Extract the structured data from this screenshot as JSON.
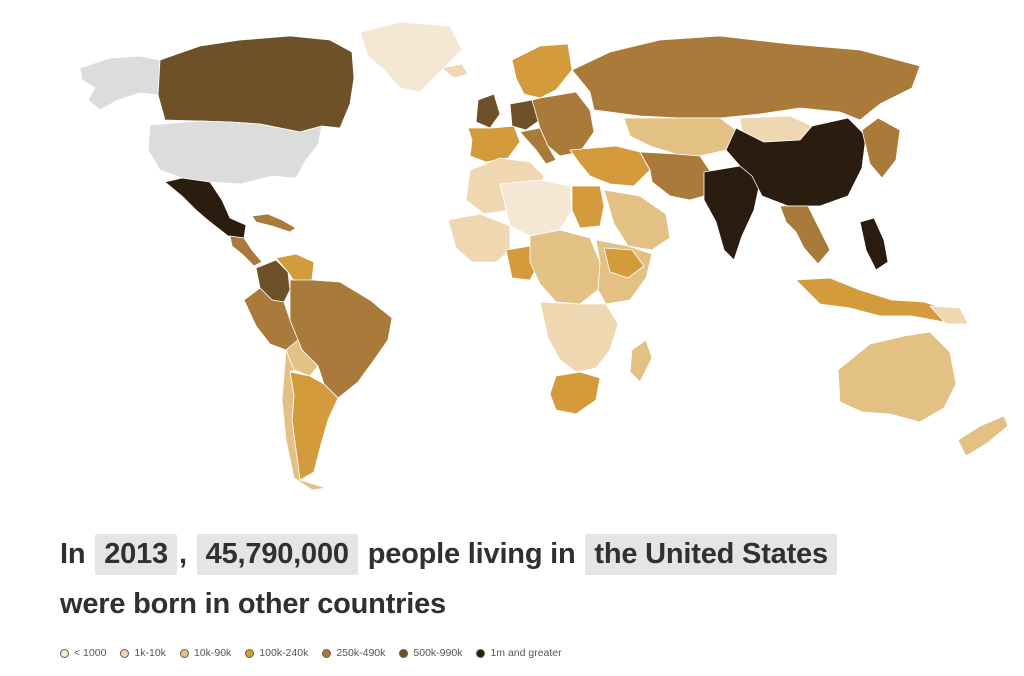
{
  "headline": {
    "in_text": "In",
    "year": "2013",
    "comma": ",",
    "count": "45,790,000",
    "mid_text": "people living in",
    "country": "the United States",
    "line2": "were born in other countries"
  },
  "legend": [
    {
      "label": "< 1000",
      "color": "#f4e7d4"
    },
    {
      "label": "1k-10k",
      "color": "#efd7b1"
    },
    {
      "label": "10k-90k",
      "color": "#e3c184"
    },
    {
      "label": "100k-240k",
      "color": "#d49b3d"
    },
    {
      "label": "250k-490k",
      "color": "#a97a3a"
    },
    {
      "label": "500k-990k",
      "color": "#6e5129"
    },
    {
      "label": "1m and greater",
      "color": "#2a1d0f"
    }
  ],
  "selected_country_color": "#dcdcdc",
  "regions": [
    {
      "name": "Alaska",
      "bin": 7
    },
    {
      "name": "Greenland",
      "bin": 0
    },
    {
      "name": "Canada",
      "bin": 5
    },
    {
      "name": "United States",
      "bin": 7
    },
    {
      "name": "Mexico",
      "bin": 6
    },
    {
      "name": "Central America",
      "bin": 4
    },
    {
      "name": "Caribbean",
      "bin": 4
    },
    {
      "name": "Colombia",
      "bin": 5
    },
    {
      "name": "Venezuela",
      "bin": 3
    },
    {
      "name": "Peru",
      "bin": 4
    },
    {
      "name": "Brazil",
      "bin": 4
    },
    {
      "name": "Bolivia",
      "bin": 2
    },
    {
      "name": "Argentina",
      "bin": 3
    },
    {
      "name": "Chile",
      "bin": 2
    },
    {
      "name": "Iceland",
      "bin": 1
    },
    {
      "name": "Scandinavia",
      "bin": 3
    },
    {
      "name": "United Kingdom",
      "bin": 5
    },
    {
      "name": "France and Iberia",
      "bin": 3
    },
    {
      "name": "Germany",
      "bin": 5
    },
    {
      "name": "Italy",
      "bin": 4
    },
    {
      "name": "Eastern Europe",
      "bin": 4
    },
    {
      "name": "Russia",
      "bin": 4
    },
    {
      "name": "Central Asia",
      "bin": 2
    },
    {
      "name": "Mongolia",
      "bin": 1
    },
    {
      "name": "Turkey and Middle East",
      "bin": 3
    },
    {
      "name": "Iran and Pakistan",
      "bin": 4
    },
    {
      "name": "India",
      "bin": 6
    },
    {
      "name": "China",
      "bin": 6
    },
    {
      "name": "Korea and Japan",
      "bin": 4
    },
    {
      "name": "Southeast Asia",
      "bin": 4
    },
    {
      "name": "Philippines",
      "bin": 6
    },
    {
      "name": "Indonesia",
      "bin": 3
    },
    {
      "name": "North Africa",
      "bin": 1
    },
    {
      "name": "Sahara",
      "bin": 0
    },
    {
      "name": "Egypt",
      "bin": 3
    },
    {
      "name": "Arabian Peninsula",
      "bin": 2
    },
    {
      "name": "West Africa",
      "bin": 1
    },
    {
      "name": "Nigeria",
      "bin": 3
    },
    {
      "name": "Central Africa",
      "bin": 2
    },
    {
      "name": "East Africa",
      "bin": 2
    },
    {
      "name": "Ethiopia",
      "bin": 3
    },
    {
      "name": "Southern Africa",
      "bin": 1
    },
    {
      "name": "South Africa",
      "bin": 3
    },
    {
      "name": "Madagascar",
      "bin": 2
    },
    {
      "name": "Australia",
      "bin": 2
    },
    {
      "name": "New Zealand",
      "bin": 2
    },
    {
      "name": "Papua New Guinea",
      "bin": 1
    }
  ]
}
